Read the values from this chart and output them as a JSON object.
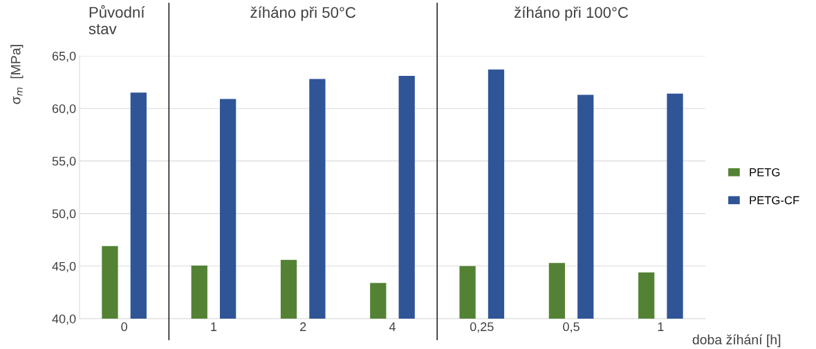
{
  "chart_data": {
    "type": "bar",
    "categories": [
      "0",
      "1",
      "2",
      "4",
      "0,25",
      "0,5",
      "1"
    ],
    "series": [
      {
        "name": "PETG",
        "color": "#548235",
        "values": [
          46.9,
          45.05,
          45.6,
          43.4,
          45.0,
          45.3,
          44.4
        ]
      },
      {
        "name": "PETG-CF",
        "color": "#2f5597",
        "values": [
          61.5,
          60.9,
          62.8,
          63.1,
          63.7,
          61.3,
          61.4
        ]
      }
    ],
    "ylabel": "σ$_{m}$  [MPa]",
    "xlabel": "doba žíhání [h]",
    "ylim": [
      40,
      65
    ],
    "yticks": [
      {
        "value": 40,
        "label": "40,0"
      },
      {
        "value": 45,
        "label": "45,0"
      },
      {
        "value": 50,
        "label": "50,0"
      },
      {
        "value": 55,
        "label": "55,0"
      },
      {
        "value": 60,
        "label": "60,0"
      },
      {
        "value": 65,
        "label": "65,0"
      }
    ],
    "grid": "y",
    "legend": "right",
    "annotations": [
      "Původní\nstav",
      "žíháno při 50°C",
      "žíháno při 100°C"
    ]
  }
}
